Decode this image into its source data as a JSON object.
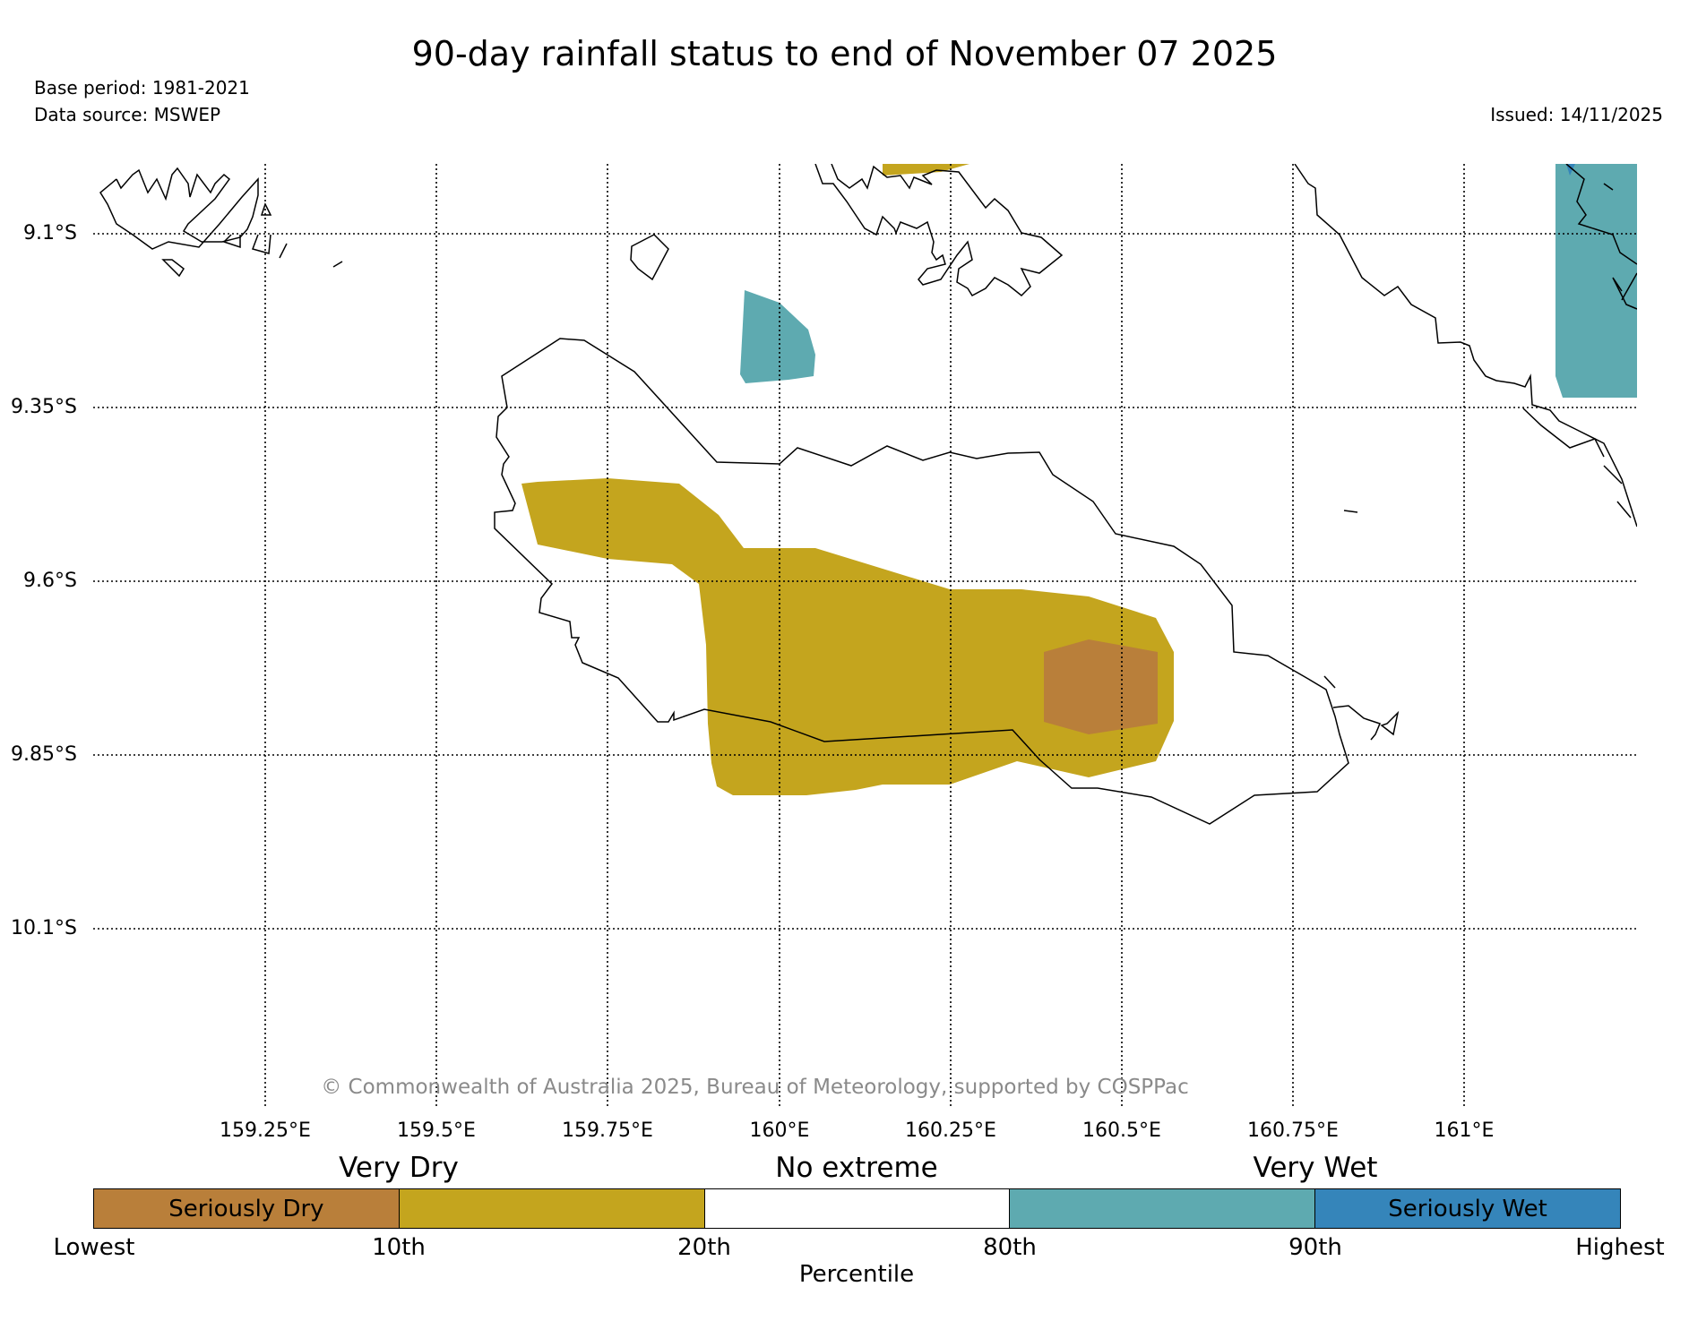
{
  "title": "90-day rainfall status to end of November 07 2025",
  "meta": {
    "base_period": "Base period: 1981-2021",
    "data_source": "Data source: MSWEP",
    "issued": "Issued: 14/11/2025"
  },
  "map": {
    "lat_labels": [
      "9.1°S",
      "9.35°S",
      "9.6°S",
      "9.85°S",
      "10.1°S"
    ],
    "lon_labels": [
      "159.25°E",
      "159.5°E",
      "159.75°E",
      "160°E",
      "160.25°E",
      "160.5°E",
      "160.75°E",
      "161°E"
    ],
    "copyright": "© Commonwealth of Australia 2025, Bureau of Meteorology, supported by COSPPac"
  },
  "legend": {
    "categories": {
      "very_dry": "Very Dry",
      "no_extreme": "No extreme",
      "very_wet": "Very Wet"
    },
    "segments": [
      {
        "label": "Seriously Dry",
        "color": "#b97f3a"
      },
      {
        "label": "",
        "color": "#c4a51e"
      },
      {
        "label": "",
        "color": "#ffffff"
      },
      {
        "label": "",
        "color": "#5eaab0"
      },
      {
        "label": "Seriously Wet",
        "color": "#3585ba"
      }
    ],
    "percentiles": [
      "Lowest",
      "10th",
      "20th",
      "80th",
      "90th",
      "Highest"
    ],
    "axis_label": "Percentile"
  },
  "colors": {
    "seriously_dry": "#b97f3a",
    "very_dry": "#c4a51e",
    "very_wet": "#5eaab0",
    "seriously_wet": "#3585ba"
  }
}
